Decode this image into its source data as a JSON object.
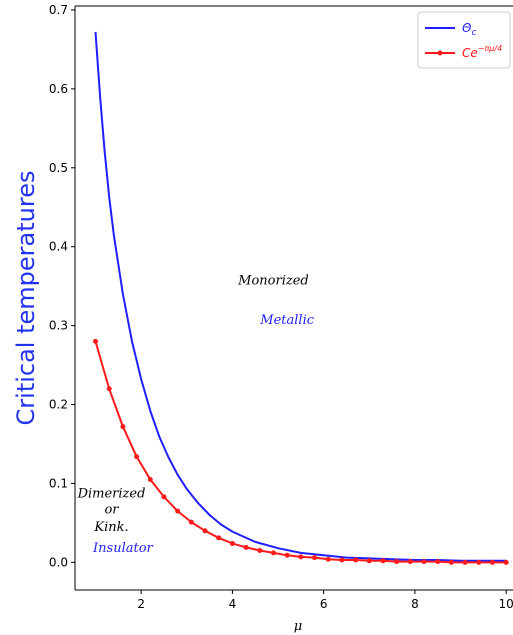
{
  "chart_data": {
    "type": "line",
    "title": "",
    "xlabel": "μ",
    "ylabel": "Critical temperatures",
    "xlim": [
      0.55,
      10.15
    ],
    "ylim": [
      -0.035,
      0.705
    ],
    "xticks": [
      2,
      4,
      6,
      8,
      10
    ],
    "yticks": [
      0.0,
      0.1,
      0.2,
      0.3,
      0.4,
      0.5,
      0.6,
      0.7
    ],
    "grid": false,
    "legend_position": "top-right",
    "colors": {
      "theta": "#1f1fff",
      "fit": "#ff1a1a",
      "ylabel": "#2233ee"
    },
    "series": [
      {
        "name": "Θc",
        "style": "line",
        "x": [
          1.0,
          1.1,
          1.2,
          1.3,
          1.4,
          1.6,
          1.8,
          2.0,
          2.2,
          2.4,
          2.6,
          2.8,
          3.0,
          3.25,
          3.5,
          3.75,
          4.0,
          4.5,
          5.0,
          5.5,
          6.0,
          6.5,
          7.0,
          7.5,
          8.0,
          8.5,
          9.0,
          9.5,
          10.0
        ],
        "y": [
          0.672,
          0.59,
          0.52,
          0.463,
          0.415,
          0.34,
          0.28,
          0.232,
          0.192,
          0.159,
          0.133,
          0.111,
          0.093,
          0.075,
          0.06,
          0.048,
          0.039,
          0.026,
          0.018,
          0.012,
          0.009,
          0.006,
          0.005,
          0.004,
          0.003,
          0.003,
          0.002,
          0.002,
          0.002
        ]
      },
      {
        "name": "Ce^{-πμ/4}",
        "style": "line-marker",
        "x": [
          1.0,
          1.3,
          1.6,
          1.9,
          2.2,
          2.5,
          2.8,
          3.1,
          3.4,
          3.7,
          4.0,
          4.3,
          4.6,
          4.9,
          5.2,
          5.5,
          5.8,
          6.1,
          6.4,
          6.7,
          7.0,
          7.3,
          7.6,
          7.9,
          8.2,
          8.5,
          8.8,
          9.1,
          9.4,
          9.7,
          10.0
        ],
        "y": [
          0.28,
          0.22,
          0.172,
          0.134,
          0.105,
          0.083,
          0.065,
          0.051,
          0.04,
          0.031,
          0.024,
          0.019,
          0.015,
          0.012,
          0.009,
          0.007,
          0.006,
          0.004,
          0.003,
          0.003,
          0.002,
          0.002,
          0.001,
          0.001,
          0.001,
          0.001,
          0.0,
          0.0,
          0.0,
          0.0,
          0.0
        ]
      }
    ],
    "annotations": [
      {
        "text": "Monorized",
        "x": 4.9,
        "y": 0.352,
        "color": "#000000"
      },
      {
        "text": "Metallic",
        "x": 5.2,
        "y": 0.302,
        "color": "#1f1fff"
      },
      {
        "text": "Dimerized",
        "x": 1.35,
        "y": 0.082,
        "color": "#000000"
      },
      {
        "text": "or",
        "x": 1.35,
        "y": 0.062,
        "color": "#000000"
      },
      {
        "text": "Kink.",
        "x": 1.35,
        "y": 0.04,
        "color": "#000000"
      },
      {
        "text": "Insulator",
        "x": 1.6,
        "y": 0.013,
        "color": "#1f1fff"
      }
    ]
  }
}
